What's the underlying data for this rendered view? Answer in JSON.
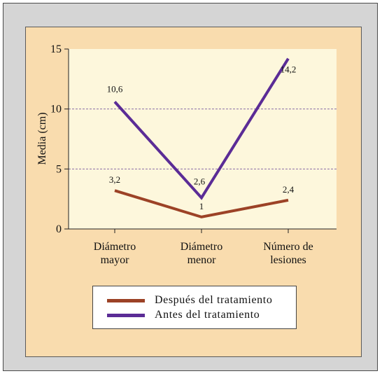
{
  "chart_data": {
    "type": "line",
    "ylabel": "Media (cm)",
    "xlabel": "",
    "ylim": [
      0,
      15
    ],
    "yticks": [
      0,
      5,
      10,
      15
    ],
    "grid": "dashed-horizontal",
    "legend_position": "bottom",
    "categories": [
      [
        "Diámetro",
        "mayor"
      ],
      [
        "Diámetro",
        "menor"
      ],
      [
        "Número de",
        "lesiones"
      ]
    ],
    "series": [
      {
        "name": "Después del tratamiento",
        "color": "#9c4226",
        "values": [
          3.2,
          1,
          2.4
        ],
        "labels": [
          "3,2",
          "1",
          "2,4"
        ]
      },
      {
        "name": "Antes del tratamiento",
        "color": "#5b2c96",
        "values": [
          10.6,
          2.6,
          14.2
        ],
        "labels": [
          "10,6",
          "2,6",
          "14,2"
        ]
      }
    ]
  },
  "colors": {
    "page_bg": "#d5d5d5",
    "panel_bg": "#f9dcae",
    "plot_bg": "#fdf7dc",
    "grid": "#7a5aa0"
  }
}
